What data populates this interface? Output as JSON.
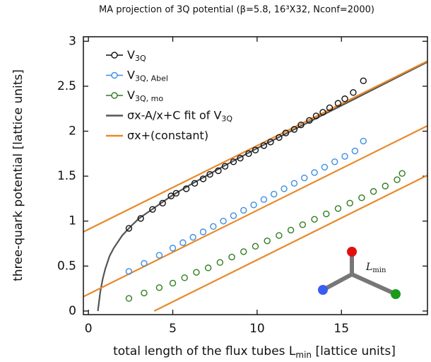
{
  "chart_data": {
    "type": "scatter",
    "title": "MA projection of 3Q potential (β=5.8, 16³X32, Nconf=2000)",
    "x_label": [
      "total length of the flux tubes L",
      "min",
      " [lattice units]"
    ],
    "y_label": "three-quark potential [lattice units]",
    "xlim": [
      -0.3,
      20.1
    ],
    "ylim": [
      -0.04,
      3.05
    ],
    "xticks": [
      0,
      5,
      10,
      15
    ],
    "yticks": [
      0,
      0.5,
      1,
      1.5,
      2,
      2.5,
      3
    ],
    "legend": "upper-left",
    "inset_label": [
      "L",
      "min"
    ],
    "series": [
      {
        "name": "V",
        "name_sub": "3Q",
        "color": "#111111",
        "style": "points",
        "x": [
          2.4,
          3.1,
          3.8,
          4.4,
          4.9,
          5.2,
          5.8,
          6.3,
          6.8,
          7.2,
          7.7,
          8.1,
          8.6,
          9.0,
          9.5,
          9.9,
          10.4,
          10.8,
          11.3,
          11.7,
          12.2,
          12.6,
          13.1,
          13.5,
          13.9,
          14.3,
          14.8,
          15.2,
          15.7,
          16.3
        ],
        "values": [
          0.92,
          1.03,
          1.13,
          1.2,
          1.28,
          1.31,
          1.36,
          1.42,
          1.47,
          1.52,
          1.56,
          1.61,
          1.66,
          1.7,
          1.75,
          1.79,
          1.84,
          1.88,
          1.93,
          1.98,
          2.02,
          2.07,
          2.12,
          2.17,
          2.21,
          2.26,
          2.31,
          2.36,
          2.43,
          2.56
        ]
      },
      {
        "name": "V",
        "name_sub": "3Q, Abel",
        "color": "#3a8ee6",
        "style": "points",
        "x": [
          2.4,
          3.3,
          4.2,
          5.0,
          5.6,
          6.2,
          6.8,
          7.4,
          8.0,
          8.6,
          9.2,
          9.8,
          10.4,
          11.0,
          11.6,
          12.2,
          12.8,
          13.4,
          14.0,
          14.6,
          15.2,
          15.8,
          16.3
        ],
        "values": [
          0.44,
          0.53,
          0.62,
          0.7,
          0.76,
          0.82,
          0.88,
          0.94,
          1.0,
          1.06,
          1.12,
          1.18,
          1.24,
          1.3,
          1.36,
          1.42,
          1.48,
          1.54,
          1.6,
          1.66,
          1.72,
          1.78,
          1.89
        ]
      },
      {
        "name": "V",
        "name_sub": "3Q, mo",
        "color": "#2f7d1e",
        "style": "points",
        "x": [
          2.4,
          3.3,
          4.2,
          5.0,
          5.7,
          6.4,
          7.1,
          7.8,
          8.5,
          9.2,
          9.9,
          10.6,
          11.3,
          12.0,
          12.7,
          13.4,
          14.1,
          14.8,
          15.5,
          16.2,
          16.9,
          17.6,
          18.3,
          18.6
        ],
        "values": [
          0.14,
          0.2,
          0.26,
          0.31,
          0.37,
          0.43,
          0.48,
          0.54,
          0.6,
          0.66,
          0.72,
          0.78,
          0.84,
          0.9,
          0.96,
          1.02,
          1.08,
          1.14,
          1.2,
          1.26,
          1.33,
          1.39,
          1.46,
          1.53
        ]
      },
      {
        "name": "σx-A/x+C fit of V",
        "name_sub": "3Q",
        "color": "#555555",
        "style": "line",
        "x": [
          0.56,
          0.7,
          0.85,
          1.0,
          1.25,
          1.5,
          2.0,
          2.5,
          3,
          4,
          5,
          6,
          8,
          10,
          12,
          14,
          16,
          18,
          20.1
        ],
        "values": [
          0.0,
          0.21,
          0.36,
          0.47,
          0.61,
          0.7,
          0.84,
          0.94,
          1.03,
          1.16,
          1.29,
          1.4,
          1.61,
          1.81,
          2.0,
          2.19,
          2.38,
          2.57,
          2.77
        ]
      },
      {
        "name": "σx+(constant)",
        "color": "#e8892a",
        "style": "line",
        "x": [
          -0.3,
          20.1,
          0,
          -0.3,
          20.1,
          0,
          3.9,
          20.1
        ],
        "values": [
          0.88,
          2.78,
          null,
          0.16,
          2.06,
          null,
          0.0,
          1.51
        ]
      }
    ]
  }
}
